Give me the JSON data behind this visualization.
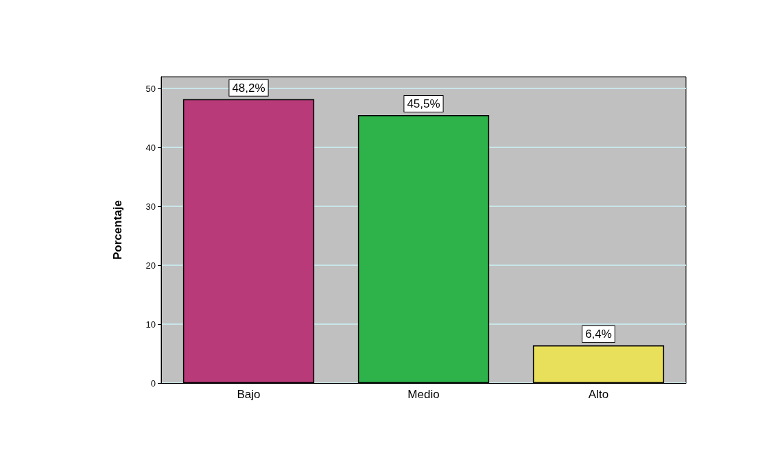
{
  "chart_data": {
    "type": "bar",
    "ylabel": "Porcentaje",
    "categories": [
      "Bajo",
      "Medio",
      "Alto"
    ],
    "values": [
      48.2,
      45.5,
      6.4
    ],
    "colors": [
      "#b83a78",
      "#2db34a",
      "#e8e05a"
    ],
    "value_labels": [
      "48,2%",
      "45,5%",
      "6,4%"
    ],
    "ylim": [
      0,
      52
    ],
    "yticks": [
      0,
      10,
      20,
      30,
      40,
      50
    ],
    "grid": "y"
  }
}
